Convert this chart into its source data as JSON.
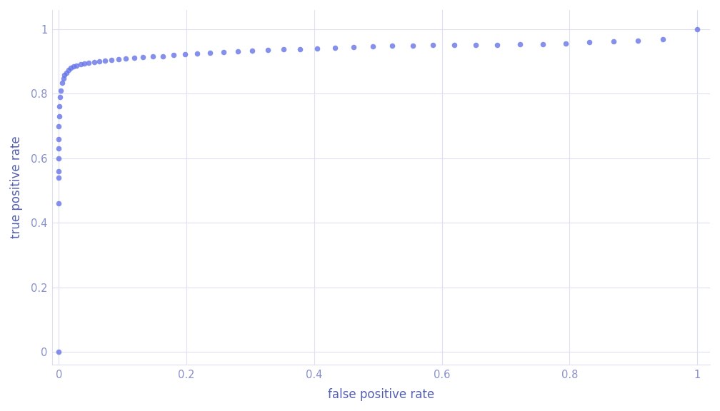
{
  "title": "",
  "xlabel": "false positive rate",
  "ylabel": "true positive rate",
  "background_color": "#ffffff",
  "plot_background_color": "#ffffff",
  "dot_color": "#6674e8",
  "dot_alpha": 0.8,
  "dot_size": 30,
  "xlim": [
    -0.01,
    1.02
  ],
  "ylim": [
    -0.04,
    1.06
  ],
  "xticks": [
    0,
    0.2,
    0.4,
    0.6,
    0.8,
    1.0
  ],
  "yticks": [
    0,
    0.2,
    0.4,
    0.6,
    0.8,
    1.0
  ],
  "grid_color": "#dde0f5",
  "axis_label_color": "#5560b0",
  "tick_label_color": "#8890c8",
  "fpr": [
    0.0,
    0.0,
    0.0,
    0.0,
    0.0,
    0.0,
    0.0,
    0.0,
    0.001,
    0.001,
    0.002,
    0.003,
    0.005,
    0.007,
    0.009,
    0.012,
    0.015,
    0.019,
    0.023,
    0.028,
    0.034,
    0.04,
    0.047,
    0.055,
    0.063,
    0.072,
    0.082,
    0.093,
    0.105,
    0.118,
    0.132,
    0.147,
    0.163,
    0.18,
    0.198,
    0.217,
    0.237,
    0.258,
    0.28,
    0.303,
    0.327,
    0.352,
    0.378,
    0.405,
    0.433,
    0.462,
    0.492,
    0.522,
    0.554,
    0.586,
    0.619,
    0.653,
    0.687,
    0.722,
    0.758,
    0.794,
    0.831,
    0.869,
    0.907,
    0.946,
    1.0
  ],
  "tpr": [
    0.0,
    0.46,
    0.54,
    0.56,
    0.6,
    0.63,
    0.66,
    0.7,
    0.73,
    0.76,
    0.79,
    0.81,
    0.835,
    0.848,
    0.858,
    0.866,
    0.874,
    0.88,
    0.884,
    0.888,
    0.891,
    0.893,
    0.896,
    0.898,
    0.9,
    0.902,
    0.904,
    0.907,
    0.909,
    0.911,
    0.913,
    0.915,
    0.917,
    0.92,
    0.922,
    0.924,
    0.926,
    0.929,
    0.931,
    0.933,
    0.935,
    0.937,
    0.939,
    0.941,
    0.943,
    0.945,
    0.947,
    0.949,
    0.95,
    0.951,
    0.952,
    0.952,
    0.952,
    0.953,
    0.954,
    0.956,
    0.96,
    0.963,
    0.965,
    0.968,
    1.0
  ]
}
